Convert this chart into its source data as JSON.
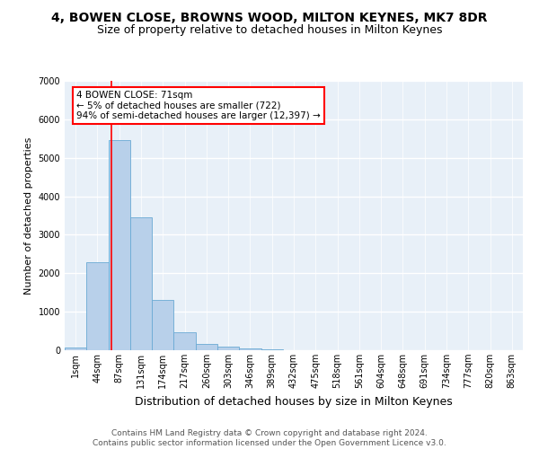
{
  "title_line1": "4, BOWEN CLOSE, BROWNS WOOD, MILTON KEYNES, MK7 8DR",
  "title_line2": "Size of property relative to detached houses in Milton Keynes",
  "xlabel": "Distribution of detached houses by size in Milton Keynes",
  "ylabel": "Number of detached properties",
  "footer_line1": "Contains HM Land Registry data © Crown copyright and database right 2024.",
  "footer_line2": "Contains public sector information licensed under the Open Government Licence v3.0.",
  "categories": [
    "1sqm",
    "44sqm",
    "87sqm",
    "131sqm",
    "174sqm",
    "217sqm",
    "260sqm",
    "303sqm",
    "346sqm",
    "389sqm",
    "432sqm",
    "475sqm",
    "518sqm",
    "561sqm",
    "604sqm",
    "648sqm",
    "691sqm",
    "734sqm",
    "777sqm",
    "820sqm",
    "863sqm"
  ],
  "bar_heights": [
    80,
    2280,
    5470,
    3450,
    1310,
    470,
    165,
    90,
    55,
    35,
    0,
    0,
    0,
    0,
    0,
    0,
    0,
    0,
    0,
    0,
    0
  ],
  "bar_color": "#b8d0ea",
  "bar_edge_color": "#6aaad4",
  "vline_x": 1.63,
  "annotation_text": "4 BOWEN CLOSE: 71sqm\n← 5% of detached houses are smaller (722)\n94% of semi-detached houses are larger (12,397) →",
  "annotation_box_facecolor": "white",
  "annotation_box_edgecolor": "red",
  "vline_color": "red",
  "ylim": [
    0,
    7000
  ],
  "yticks": [
    0,
    1000,
    2000,
    3000,
    4000,
    5000,
    6000,
    7000
  ],
  "plot_bg_color": "#e8f0f8",
  "grid_color": "white",
  "title1_fontsize": 10,
  "title2_fontsize": 9,
  "xlabel_fontsize": 9,
  "ylabel_fontsize": 8,
  "tick_fontsize": 7,
  "annot_fontsize": 7.5,
  "footer_fontsize": 6.5
}
